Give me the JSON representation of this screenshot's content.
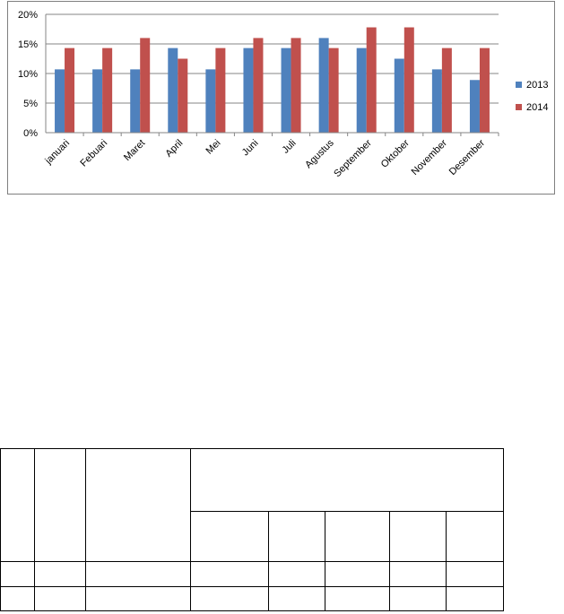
{
  "chart_data": {
    "type": "bar",
    "title": "",
    "xlabel": "",
    "ylabel": "",
    "ylim": [
      0,
      0.2
    ],
    "yticks": [
      0,
      0.05,
      0.1,
      0.15,
      0.2
    ],
    "ytick_labels": [
      "0%",
      "5%",
      "10%",
      "15%",
      "20%"
    ],
    "grid": true,
    "legend_position": "right",
    "categories": [
      "januari",
      "Febuari",
      "Maret",
      "April",
      "Mei",
      "Juni",
      "Juli",
      "Agustus",
      "September",
      "Oktober",
      "November",
      "Desember"
    ],
    "series": [
      {
        "name": "2013",
        "color": "#4f81bd",
        "values": [
          0.107,
          0.107,
          0.107,
          0.143,
          0.107,
          0.143,
          0.143,
          0.16,
          0.143,
          0.125,
          0.107,
          0.089
        ]
      },
      {
        "name": "2014",
        "color": "#c0504d",
        "values": [
          0.143,
          0.143,
          0.16,
          0.125,
          0.143,
          0.16,
          0.16,
          0.143,
          0.178,
          0.178,
          0.143,
          0.143
        ]
      }
    ]
  },
  "table": {
    "rows": 3
  }
}
